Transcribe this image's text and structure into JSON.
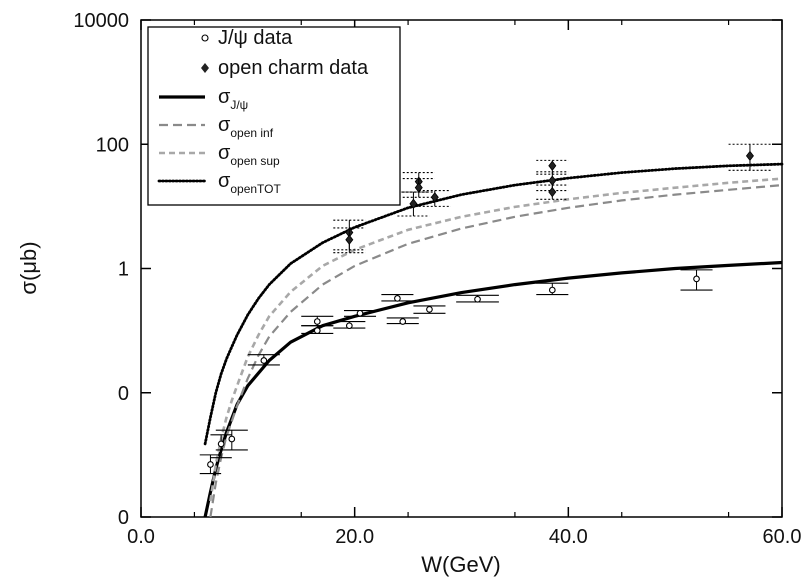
{
  "chart_data": {
    "type": "scatter",
    "xlabel": "W(GeV)",
    "ylabel": "σ(μb)",
    "xlim": [
      0,
      60
    ],
    "ylim": [
      0.0001,
      10000
    ],
    "yscale": "log",
    "x_ticks": [
      "0.0",
      "20.0",
      "40.0",
      "60.0"
    ],
    "y_ticks": [
      {
        "value": 10000,
        "label": "10000"
      },
      {
        "value": 100,
        "label": "100"
      },
      {
        "value": 1,
        "label": "1"
      },
      {
        "value": 0.01,
        "label": "0"
      },
      {
        "value": 0.0001,
        "label": "0"
      }
    ],
    "grid": false,
    "legend_position": "top-left",
    "legend": [
      {
        "base": "J/ψ data",
        "sub": "",
        "kind": "open-circle"
      },
      {
        "base": "open charm data",
        "sub": "",
        "kind": "diamond"
      },
      {
        "base": "σ",
        "sub": "J/ψ",
        "kind": "solid"
      },
      {
        "base": "σ",
        "sub": "open inf",
        "kind": "dash-light"
      },
      {
        "base": "σ",
        "sub": "open sup",
        "kind": "dash-light2"
      },
      {
        "base": "σ",
        "sub": "openTOT",
        "kind": "dotted"
      }
    ],
    "series": [
      {
        "name": "J/ψ data",
        "kind": "points",
        "marker": "open-circle",
        "points": [
          {
            "x": 6.5,
            "y": 0.0007,
            "xerr": 1.0,
            "ylo": 0.0005,
            "yhi": 0.001
          },
          {
            "x": 7.5,
            "y": 0.0015,
            "xerr": 1.0,
            "ylo": 0.0009,
            "yhi": 0.0021
          },
          {
            "x": 8.5,
            "y": 0.0018,
            "xerr": 1.5,
            "ylo": 0.0012,
            "yhi": 0.0025
          },
          {
            "x": 11.5,
            "y": 0.033,
            "xerr": 1.5,
            "ylo": 0.028,
            "yhi": 0.041
          },
          {
            "x": 16.5,
            "y": 0.14,
            "xerr": 1.5,
            "ylo": 0.12,
            "yhi": 0.17
          },
          {
            "x": 16.5,
            "y": 0.1,
            "xerr": 1.5,
            "ylo": 0.09,
            "yhi": 0.12
          },
          {
            "x": 19.5,
            "y": 0.12,
            "xerr": 1.5,
            "ylo": 0.11,
            "yhi": 0.14
          },
          {
            "x": 20.5,
            "y": 0.19,
            "xerr": 1.5,
            "ylo": 0.17,
            "yhi": 0.21
          },
          {
            "x": 24.0,
            "y": 0.33,
            "xerr": 1.5,
            "ylo": 0.3,
            "yhi": 0.38
          },
          {
            "x": 24.5,
            "y": 0.14,
            "xerr": 1.5,
            "ylo": 0.13,
            "yhi": 0.16
          },
          {
            "x": 27.0,
            "y": 0.22,
            "xerr": 1.5,
            "ylo": 0.19,
            "yhi": 0.25
          },
          {
            "x": 31.5,
            "y": 0.32,
            "xerr": 2.0,
            "ylo": 0.29,
            "yhi": 0.37
          },
          {
            "x": 38.5,
            "y": 0.45,
            "xerr": 1.5,
            "ylo": 0.38,
            "yhi": 0.58
          },
          {
            "x": 52.0,
            "y": 0.68,
            "xerr": 1.5,
            "ylo": 0.45,
            "yhi": 0.95
          }
        ]
      },
      {
        "name": "open charm data",
        "kind": "points",
        "marker": "diamond",
        "points": [
          {
            "x": 19.5,
            "y": 3.8,
            "xerr": 1.5,
            "ylo": 2.0,
            "yhi": 6.0
          },
          {
            "x": 19.5,
            "y": 2.9,
            "xerr": 1.5,
            "ylo": 1.8,
            "yhi": 4.5
          },
          {
            "x": 25.5,
            "y": 11,
            "xerr": 1.5,
            "ylo": 7,
            "yhi": 17
          },
          {
            "x": 26.0,
            "y": 25,
            "xerr": 1.5,
            "ylo": 17,
            "yhi": 35
          },
          {
            "x": 26.0,
            "y": 20,
            "xerr": 1.5,
            "ylo": 14,
            "yhi": 28
          },
          {
            "x": 27.5,
            "y": 14,
            "xerr": 1.5,
            "ylo": 10,
            "yhi": 18
          },
          {
            "x": 38.5,
            "y": 45,
            "xerr": 1.5,
            "ylo": 33,
            "yhi": 55
          },
          {
            "x": 38.5,
            "y": 26,
            "xerr": 1.5,
            "ylo": 18,
            "yhi": 36
          },
          {
            "x": 38.5,
            "y": 17,
            "xerr": 1.5,
            "ylo": 13,
            "yhi": 22
          },
          {
            "x": 57.0,
            "y": 65,
            "xerr": 2.0,
            "ylo": 38,
            "yhi": 100
          }
        ]
      },
      {
        "name": "σJ/ψ",
        "kind": "line",
        "style": "solid",
        "x": [
          6,
          6.5,
          7,
          7.5,
          8,
          9,
          10,
          12,
          14,
          17,
          20,
          25,
          30,
          35,
          40,
          45,
          50,
          55,
          60
        ],
        "y": [
          0.0001,
          0.00025,
          0.0006,
          0.0012,
          0.0023,
          0.0065,
          0.013,
          0.033,
          0.065,
          0.12,
          0.17,
          0.28,
          0.41,
          0.55,
          0.7,
          0.85,
          1.0,
          1.12,
          1.25
        ]
      },
      {
        "name": "σopen inf",
        "kind": "line",
        "style": "dash-light",
        "x": [
          6.5,
          7,
          7.5,
          8,
          8.5,
          9,
          10,
          11,
          12,
          14,
          17,
          20,
          25,
          30,
          35,
          40,
          45,
          50,
          55,
          60
        ],
        "y": [
          0.0001,
          0.00035,
          0.0009,
          0.002,
          0.0035,
          0.0062,
          0.017,
          0.04,
          0.08,
          0.2,
          0.55,
          1.1,
          2.5,
          4.4,
          6.8,
          9.5,
          12.5,
          15.5,
          18.5,
          22
        ]
      },
      {
        "name": "σopen sup",
        "kind": "line",
        "style": "dash-light2",
        "x": [
          6.5,
          7,
          7.5,
          8,
          8.5,
          9,
          10,
          11,
          12,
          14,
          17,
          20,
          25,
          30,
          35,
          40,
          45,
          50,
          55,
          60
        ],
        "y": [
          0.00018,
          0.0007,
          0.0018,
          0.004,
          0.0075,
          0.013,
          0.038,
          0.085,
          0.17,
          0.42,
          1.1,
          2.0,
          4.2,
          6.8,
          9.8,
          13,
          16.5,
          20,
          24,
          28
        ]
      },
      {
        "name": "σopenTOT",
        "kind": "line",
        "style": "dotted",
        "x": [
          6,
          6.5,
          7,
          7.5,
          8,
          8.5,
          9,
          10,
          11,
          12,
          14,
          17,
          20,
          25,
          30,
          35,
          40,
          45,
          50,
          55,
          60
        ],
        "y": [
          0.0015,
          0.004,
          0.01,
          0.02,
          0.035,
          0.055,
          0.085,
          0.18,
          0.33,
          0.55,
          1.2,
          2.6,
          4.6,
          9.5,
          15.5,
          22,
          28.5,
          35,
          40.5,
          45,
          48
        ]
      }
    ]
  }
}
